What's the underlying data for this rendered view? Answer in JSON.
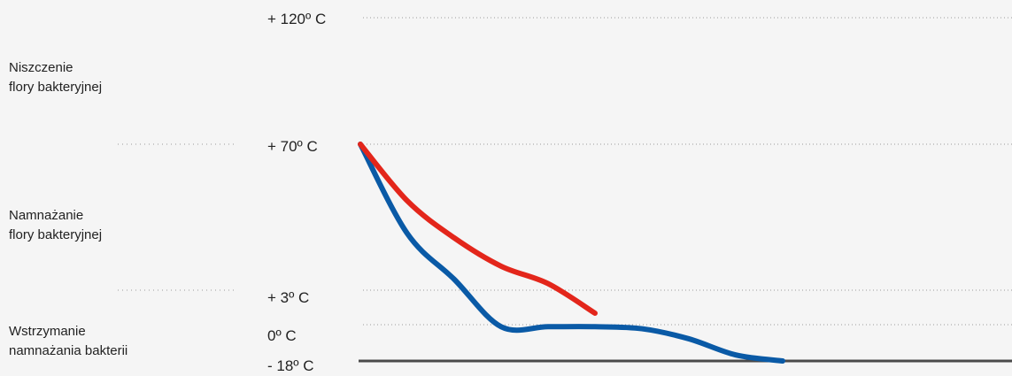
{
  "zones": [
    {
      "lines": [
        "Niszczenie",
        "flory bakteryjnej"
      ]
    },
    {
      "lines": [
        "Namnażanie",
        "flory bakteryjnej"
      ]
    },
    {
      "lines": [
        "Wstrzymanie",
        "namnażania bakterii"
      ]
    }
  ],
  "chart_data": {
    "type": "line",
    "title": "",
    "xlabel": "",
    "ylabel": "",
    "y_tick_labels": [
      "+ 120º C",
      "+ 70º C",
      "+ 3º C",
      "0º C",
      "- 18º C"
    ],
    "y_ticks": [
      120,
      70,
      3,
      0,
      -18
    ],
    "grid": "dotted horizontal lines at +120, +70, +3 and 0; solid baseline at -18",
    "series": [
      {
        "color": "#e3261b",
        "shape": "curve",
        "points": [
          [
            0,
            70
          ],
          [
            1,
            44
          ],
          [
            2,
            27
          ],
          [
            3,
            14
          ],
          [
            4,
            6
          ],
          [
            5,
            1
          ]
        ]
      },
      {
        "color": "#0a5aa6",
        "shape": "curve",
        "points": [
          [
            0,
            70
          ],
          [
            1,
            29
          ],
          [
            2,
            8
          ],
          [
            3,
            -1
          ],
          [
            4,
            -1
          ],
          [
            5,
            -1
          ],
          [
            6,
            -2
          ],
          [
            7,
            -7
          ],
          [
            8,
            -15
          ],
          [
            9,
            -18
          ]
        ]
      }
    ],
    "colors": {
      "grid": "#9a9a9a",
      "baseline": "#4a4a4a",
      "text": "#222222"
    }
  }
}
